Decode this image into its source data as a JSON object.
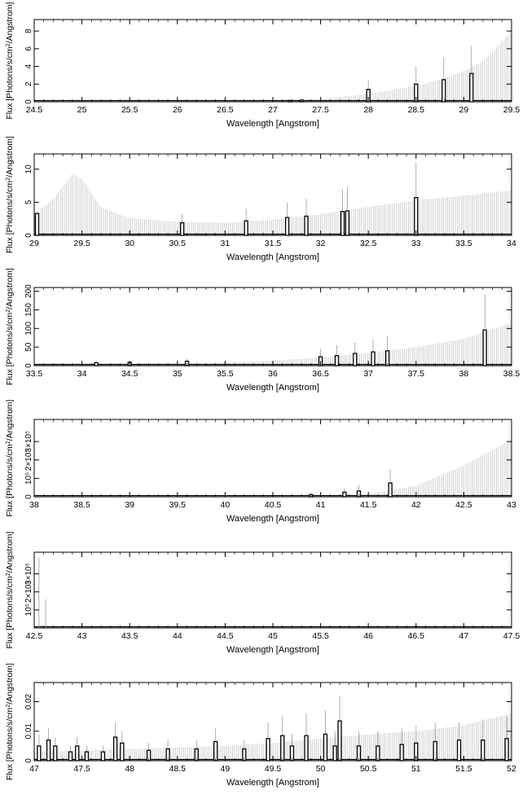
{
  "figure": {
    "ylabel_prefix": "Flux [Photons/s/cm",
    "ylabel_suffix": "/Angstrom]",
    "ylabel_sup": "2"
  },
  "chart_data": [
    {
      "type": "bar",
      "xlabel": "Wavelength [Angstrom]",
      "ylabel": "Flux [Photons/s/cm2/Angstrom]",
      "xlim": [
        24.5,
        29.5
      ],
      "ylim": [
        0,
        9.3
      ],
      "x_ticks": [
        "24.5",
        "25",
        "25.5",
        "26",
        "26.5",
        "27",
        "27.5",
        "28",
        "28.5",
        "29",
        "29.5"
      ],
      "y_ticks": [
        "0",
        "2",
        "4",
        "6",
        "8"
      ],
      "y_tick_values": [
        0,
        2,
        4,
        6,
        8
      ],
      "envelope": [
        [
          24.5,
          0.05
        ],
        [
          26,
          0.05
        ],
        [
          27,
          0.08
        ],
        [
          27.5,
          0.3
        ],
        [
          28,
          0.9
        ],
        [
          28.5,
          1.8
        ],
        [
          28.8,
          2.7
        ],
        [
          29,
          3.5
        ],
        [
          29.2,
          4.6
        ],
        [
          29.4,
          6.8
        ],
        [
          29.5,
          8.0
        ]
      ],
      "bars": [
        {
          "x": 27.18,
          "value": 0.15,
          "err": 0.25
        },
        {
          "x": 27.3,
          "value": 0.2,
          "err": 0.3
        },
        {
          "x": 28.0,
          "value": 1.4,
          "err": 2.4
        },
        {
          "x": 28.5,
          "value": 2.0,
          "err": 4.0
        },
        {
          "x": 28.79,
          "value": 2.5,
          "err": 5.0
        },
        {
          "x": 29.08,
          "value": 3.2,
          "err": 6.3
        }
      ]
    },
    {
      "type": "bar",
      "xlabel": "Wavelength [Angstrom]",
      "ylabel": "Flux [Photons/s/cm2/Angstrom]",
      "xlim": [
        29,
        34
      ],
      "ylim": [
        0,
        12.3
      ],
      "x_ticks": [
        "29",
        "29.5",
        "30",
        "30.5",
        "31",
        "31.5",
        "32",
        "32.5",
        "33",
        "33.5",
        "34"
      ],
      "y_ticks": [
        "0",
        "5",
        "10"
      ],
      "y_tick_values": [
        0,
        5,
        10
      ],
      "envelope": [
        [
          29,
          3.2
        ],
        [
          29.2,
          5.5
        ],
        [
          29.4,
          9.3
        ],
        [
          29.5,
          8.5
        ],
        [
          29.7,
          4.2
        ],
        [
          30,
          2.6
        ],
        [
          30.5,
          2.1
        ],
        [
          31,
          1.9
        ],
        [
          31.5,
          2.4
        ],
        [
          32,
          3.2
        ],
        [
          32.5,
          4.3
        ],
        [
          33,
          5.3
        ],
        [
          33.5,
          6.0
        ],
        [
          34,
          6.8
        ]
      ],
      "bars": [
        {
          "x": 29.03,
          "value": 3.3,
          "err": 3.5
        },
        {
          "x": 30.55,
          "value": 1.9,
          "err": 3.2
        },
        {
          "x": 31.22,
          "value": 2.2,
          "err": 4.0
        },
        {
          "x": 31.65,
          "value": 2.7,
          "err": 5.0
        },
        {
          "x": 31.85,
          "value": 2.9,
          "err": 5.5
        },
        {
          "x": 32.23,
          "value": 3.6,
          "err": 7.0
        },
        {
          "x": 32.28,
          "value": 3.7,
          "err": 7.3
        },
        {
          "x": 33.0,
          "value": 5.7,
          "err": 11.0
        }
      ]
    },
    {
      "type": "bar",
      "xlabel": "Wavelength [Angstrom]",
      "ylabel": "Flux [Photons/s/cm2/Angstrom]",
      "xlim": [
        33.5,
        38.5
      ],
      "ylim": [
        0,
        210
      ],
      "x_ticks": [
        "33.5",
        "34",
        "34.5",
        "35",
        "35.5",
        "36",
        "36.5",
        "37",
        "37.5",
        "38",
        "38.5"
      ],
      "y_ticks": [
        "0",
        "50",
        "100",
        "150",
        "200"
      ],
      "y_tick_values": [
        0,
        50,
        100,
        150,
        200
      ],
      "envelope": [
        [
          33.5,
          6
        ],
        [
          34,
          6
        ],
        [
          34.5,
          6
        ],
        [
          35,
          7
        ],
        [
          35.5,
          9
        ],
        [
          36,
          14
        ],
        [
          36.5,
          22
        ],
        [
          37,
          34
        ],
        [
          37.5,
          50
        ],
        [
          38,
          72
        ],
        [
          38.5,
          115
        ]
      ],
      "bars": [
        {
          "x": 34.15,
          "value": 8,
          "err": 12
        },
        {
          "x": 34.5,
          "value": 9,
          "err": 14
        },
        {
          "x": 35.1,
          "value": 12,
          "err": 18
        },
        {
          "x": 36.5,
          "value": 24,
          "err": 45
        },
        {
          "x": 36.67,
          "value": 27,
          "err": 55
        },
        {
          "x": 36.86,
          "value": 33,
          "err": 63
        },
        {
          "x": 37.05,
          "value": 37,
          "err": 70
        },
        {
          "x": 37.2,
          "value": 40,
          "err": 80
        },
        {
          "x": 38.22,
          "value": 96,
          "err": 190
        }
      ]
    },
    {
      "type": "bar",
      "xlabel": "Wavelength [Angstrom]",
      "ylabel": "Flux [Photons/s/cm2/Angstrom]",
      "xlim": [
        38,
        43
      ],
      "ylim": [
        0,
        420000
      ],
      "x_ticks": [
        "38",
        "38.5",
        "39",
        "39.5",
        "40",
        "40.5",
        "41",
        "41.5",
        "42",
        "42.5",
        "43"
      ],
      "y_ticks": [
        "0",
        "10⁵",
        "2×10⁵",
        "3×10⁵"
      ],
      "y_tick_values": [
        0,
        100000,
        200000,
        300000
      ],
      "envelope": [
        [
          38,
          0
        ],
        [
          40.8,
          0
        ],
        [
          41,
          2000
        ],
        [
          41.5,
          15000
        ],
        [
          42,
          60000
        ],
        [
          42.5,
          170000
        ],
        [
          43,
          310000
        ]
      ],
      "bars": [
        {
          "x": 40.9,
          "value": 12000,
          "err": 20000
        },
        {
          "x": 41.25,
          "value": 25000,
          "err": 50000
        },
        {
          "x": 41.4,
          "value": 32000,
          "err": 65000
        },
        {
          "x": 41.73,
          "value": 75000,
          "err": 150000
        }
      ]
    },
    {
      "type": "bar",
      "xlabel": "Wavelength [Angstrom]",
      "ylabel": "Flux [Photons/s/cm2/Angstrom]",
      "xlim": [
        42.5,
        47.5
      ],
      "ylim": [
        0,
        420000
      ],
      "x_ticks": [
        "42.5",
        "43",
        "43.5",
        "44",
        "44.5",
        "45",
        "45.5",
        "46",
        "46.5",
        "47",
        "47.5"
      ],
      "y_ticks": [
        "10⁵",
        "2×10⁵",
        "3×10⁵"
      ],
      "y_tick_values": [
        100000,
        200000,
        300000
      ],
      "envelope": [],
      "bars": [
        {
          "x": 42.55,
          "value": 0,
          "err": 390000
        },
        {
          "x": 42.62,
          "value": 0,
          "err": 160000
        }
      ]
    },
    {
      "type": "bar",
      "xlabel": "Wavelength [Angstrom]",
      "ylabel": "Flux [Photons/s/cm2/Angstrom]",
      "xlim": [
        47,
        52
      ],
      "ylim": [
        0,
        0.0265
      ],
      "x_ticks": [
        "47",
        "47.5",
        "48",
        "48.5",
        "49",
        "49.5",
        "50",
        "50.5",
        "51",
        "51.5",
        "52"
      ],
      "y_ticks": [
        "0",
        "0.01",
        "0.02"
      ],
      "y_tick_values": [
        0,
        0.01,
        0.02
      ],
      "envelope": [
        [
          47,
          0.003
        ],
        [
          47.5,
          0.0035
        ],
        [
          48,
          0.004
        ],
        [
          48.5,
          0.0045
        ],
        [
          49,
          0.005
        ],
        [
          49.5,
          0.006
        ],
        [
          50,
          0.0075
        ],
        [
          50.5,
          0.009
        ],
        [
          51,
          0.01
        ],
        [
          51.5,
          0.012
        ],
        [
          52,
          0.016
        ]
      ],
      "bars": [
        {
          "x": 47.05,
          "value": 0.005,
          "err": 0.009
        },
        {
          "x": 47.15,
          "value": 0.007,
          "err": 0.011
        },
        {
          "x": 47.22,
          "value": 0.005,
          "err": 0.008
        },
        {
          "x": 47.38,
          "value": 0.003,
          "err": 0.005
        },
        {
          "x": 47.45,
          "value": 0.005,
          "err": 0.008
        },
        {
          "x": 47.55,
          "value": 0.003,
          "err": 0.005
        },
        {
          "x": 47.72,
          "value": 0.003,
          "err": 0.005
        },
        {
          "x": 47.85,
          "value": 0.008,
          "err": 0.013
        },
        {
          "x": 47.92,
          "value": 0.006,
          "err": 0.01
        },
        {
          "x": 48.2,
          "value": 0.0035,
          "err": 0.006
        },
        {
          "x": 48.4,
          "value": 0.004,
          "err": 0.007
        },
        {
          "x": 48.7,
          "value": 0.004,
          "err": 0.007
        },
        {
          "x": 48.9,
          "value": 0.0065,
          "err": 0.011
        },
        {
          "x": 49.2,
          "value": 0.004,
          "err": 0.007
        },
        {
          "x": 49.45,
          "value": 0.0075,
          "err": 0.013
        },
        {
          "x": 49.6,
          "value": 0.0085,
          "err": 0.015
        },
        {
          "x": 49.7,
          "value": 0.005,
          "err": 0.009
        },
        {
          "x": 49.85,
          "value": 0.0085,
          "err": 0.016
        },
        {
          "x": 50.05,
          "value": 0.009,
          "err": 0.017
        },
        {
          "x": 50.15,
          "value": 0.005,
          "err": 0.01
        },
        {
          "x": 50.2,
          "value": 0.0135,
          "err": 0.022
        },
        {
          "x": 50.4,
          "value": 0.005,
          "err": 0.01
        },
        {
          "x": 50.6,
          "value": 0.005,
          "err": 0.01
        },
        {
          "x": 50.85,
          "value": 0.0055,
          "err": 0.011
        },
        {
          "x": 51.0,
          "value": 0.006,
          "err": 0.012
        },
        {
          "x": 51.2,
          "value": 0.0065,
          "err": 0.013
        },
        {
          "x": 51.45,
          "value": 0.007,
          "err": 0.013
        },
        {
          "x": 51.7,
          "value": 0.007,
          "err": 0.014
        },
        {
          "x": 51.95,
          "value": 0.0075,
          "err": 0.015
        }
      ]
    }
  ]
}
